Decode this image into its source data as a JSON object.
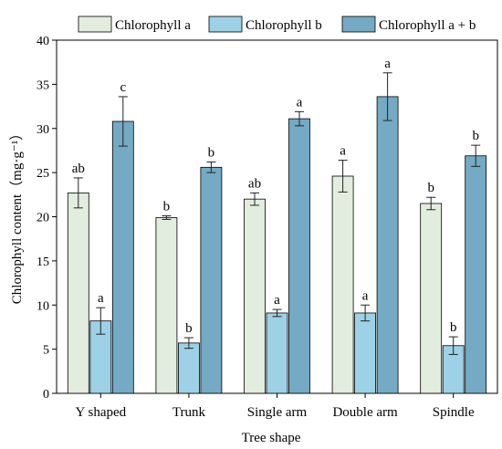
{
  "chart_data": {
    "type": "bar",
    "categories": [
      "Y shaped",
      "Trunk",
      "Single arm",
      "Double arm",
      "Spindle"
    ],
    "series": [
      {
        "name": "Chlorophyll a",
        "values": [
          22.7,
          19.9,
          22.0,
          24.6,
          21.5
        ],
        "errors": [
          1.7,
          0.2,
          0.7,
          1.8,
          0.7
        ],
        "labels": [
          "ab",
          "b",
          "ab",
          "a",
          "b"
        ],
        "color": "#e2eddf"
      },
      {
        "name": "Chlorophyll b",
        "values": [
          8.2,
          5.7,
          9.1,
          9.1,
          5.4
        ],
        "errors": [
          1.5,
          0.6,
          0.4,
          0.9,
          1.0
        ],
        "labels": [
          "a",
          "b",
          "a",
          "a",
          "b"
        ],
        "color": "#9dd1e5"
      },
      {
        "name": "Chlorophyll a + b",
        "values": [
          30.8,
          25.6,
          31.1,
          33.6,
          26.9
        ],
        "errors": [
          2.8,
          0.6,
          0.8,
          2.7,
          1.2
        ],
        "labels": [
          "c",
          "b",
          "a",
          "a",
          "b"
        ],
        "color": "#74aac4"
      }
    ],
    "xlabel": "Tree shape",
    "ylabel": "Chlorophyll content（mg·g⁻¹）",
    "ylim": [
      0,
      40
    ],
    "yticks": [
      0,
      5,
      10,
      15,
      20,
      25,
      30,
      35,
      40
    ],
    "grid": false,
    "legend": "top"
  }
}
